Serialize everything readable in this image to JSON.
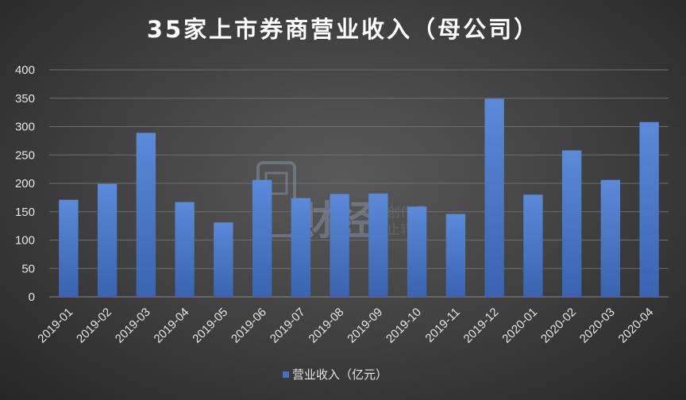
{
  "chart_data": {
    "type": "bar",
    "title": "35家上市券商营业收入（母公司）",
    "categories": [
      "2019-01",
      "2019-02",
      "2019-03",
      "2019-04",
      "2019-05",
      "2019-06",
      "2019-07",
      "2019-08",
      "2019-09",
      "2019-10",
      "2019-11",
      "2019-12",
      "2020-01",
      "2020-02",
      "2020-03",
      "2020-04"
    ],
    "series": [
      {
        "name": "营业收入（亿元）",
        "values": [
          171,
          199,
          289,
          167,
          131,
          206,
          174,
          181,
          182,
          159,
          146,
          349,
          180,
          258,
          206,
          308
        ]
      }
    ],
    "ylim": [
      0,
      400
    ],
    "yticks": [
      "0",
      "50",
      "100",
      "150",
      "200",
      "250",
      "300",
      "350",
      "400"
    ],
    "xlabel": "",
    "ylabel": "",
    "grid": true,
    "legend_position": "bottom",
    "colors": {
      "bar": "#4472c4",
      "bar_light": "#5b8ad8",
      "grid": "#6e6e6e",
      "text": "#e6e6e6"
    }
  },
  "watermark": {
    "brand": "财经",
    "line1": "原创作品",
    "line2": "禁止转载"
  }
}
